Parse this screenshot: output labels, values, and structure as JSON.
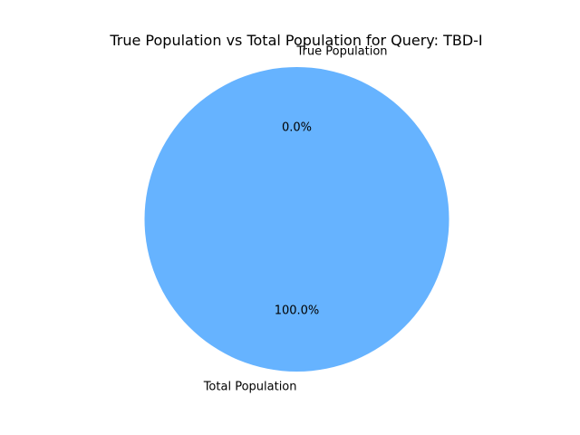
{
  "chart_data": {
    "type": "pie",
    "title": "True Population vs Total Population for Query: TBD-I",
    "slices": [
      {
        "label": "True Population",
        "value": 0.0,
        "pct_label": "0.0%",
        "color": "#ff9999"
      },
      {
        "label": "Total Population",
        "value": 100.0,
        "pct_label": "100.0%",
        "color": "#66b3ff"
      }
    ],
    "start_angle": 90,
    "legend": "none"
  }
}
